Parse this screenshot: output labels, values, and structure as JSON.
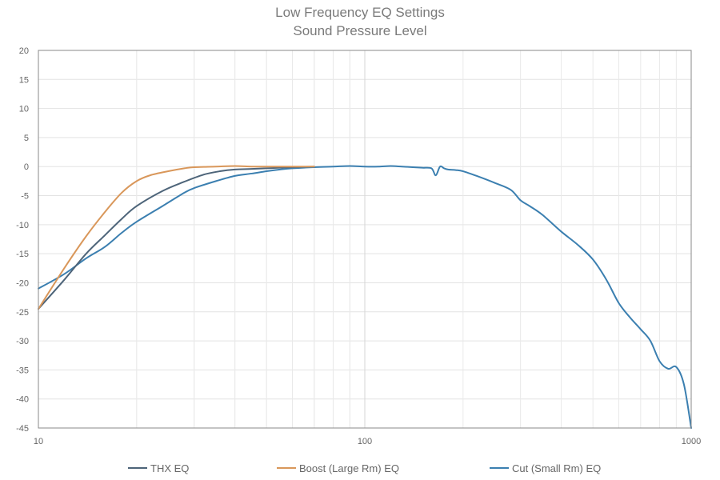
{
  "chart_data": {
    "type": "line",
    "title": "Low Frequency EQ Settings",
    "subtitle": "Sound Pressure Level",
    "xlabel": "",
    "ylabel": "",
    "x_scale": "log",
    "xlim": [
      10,
      1000
    ],
    "ylim": [
      -45,
      20
    ],
    "x_ticks": [
      10,
      100,
      1000
    ],
    "y_ticks": [
      20,
      15,
      10,
      5,
      0,
      -5,
      -10,
      -15,
      -20,
      -25,
      -30,
      -35,
      -40,
      -45
    ],
    "grid": true,
    "legend_position": "bottom",
    "series": [
      {
        "name": "THX EQ",
        "color": "#4d6479",
        "x": [
          10,
          12,
          14,
          16,
          18,
          20,
          24,
          28,
          32,
          36,
          40,
          45,
          50,
          55,
          60,
          70
        ],
        "y": [
          -24.5,
          -19.5,
          -15,
          -11.8,
          -9,
          -6.8,
          -4.2,
          -2.6,
          -1.4,
          -0.8,
          -0.5,
          -0.4,
          -0.3,
          -0.2,
          -0.1,
          0
        ]
      },
      {
        "name": "Boost (Large Rm) EQ",
        "color": "#d9975a",
        "x": [
          10,
          12,
          14,
          16,
          18,
          20,
          22,
          25,
          28,
          30,
          35,
          40,
          45,
          50,
          60,
          70
        ],
        "y": [
          -24.5,
          -17.5,
          -12,
          -7.8,
          -4.5,
          -2.5,
          -1.5,
          -0.8,
          -0.3,
          -0.1,
          0,
          0.1,
          0,
          0,
          0,
          0
        ]
      },
      {
        "name": "Cut (Small Rm) EQ",
        "color": "#3b7fb0",
        "x": [
          10,
          12,
          14,
          16,
          18,
          20,
          24,
          28,
          30,
          35,
          40,
          45,
          50,
          55,
          60,
          70,
          80,
          90,
          100,
          110,
          120,
          130,
          140,
          150,
          160,
          165,
          170,
          175,
          180,
          190,
          200,
          220,
          250,
          280,
          300,
          320,
          350,
          400,
          450,
          500,
          550,
          600,
          650,
          700,
          750,
          800,
          850,
          900,
          950,
          1000
        ],
        "y": [
          -21,
          -18.5,
          -15.8,
          -13.8,
          -11.4,
          -9.5,
          -6.8,
          -4.5,
          -3.7,
          -2.5,
          -1.6,
          -1.2,
          -0.8,
          -0.5,
          -0.3,
          -0.1,
          0,
          0.1,
          0,
          0,
          0.1,
          0,
          -0.1,
          -0.2,
          -0.3,
          -1.5,
          0,
          -0.3,
          -0.5,
          -0.6,
          -0.8,
          -1.6,
          -2.8,
          -4,
          -5.8,
          -6.8,
          -8.3,
          -11.2,
          -13.5,
          -16,
          -19.5,
          -23.5,
          -26,
          -28,
          -30,
          -33.5,
          -34.8,
          -34.5,
          -37.5,
          -45
        ]
      }
    ]
  }
}
